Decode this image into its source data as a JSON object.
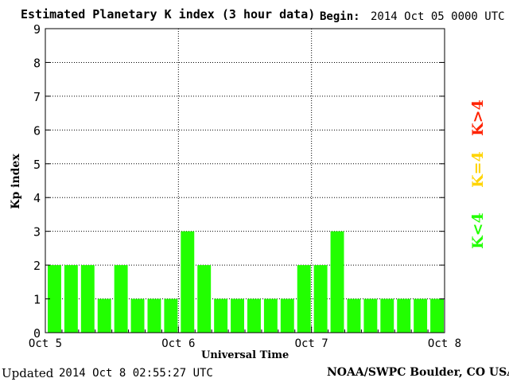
{
  "page": {
    "title": "Estimated Planetary K index (3 hour data)",
    "begin_label": "Begin:",
    "begin_value": "2014 Oct 05 0000 UTC",
    "updated_label": "Updated",
    "updated_value": "2014 Oct  8 02:55:27 UTC",
    "footer_right": "NOAA/SWPC Boulder, CO USA"
  },
  "legend": {
    "high": {
      "label": "K>4",
      "color": "#ff2200"
    },
    "equal": {
      "label": "K=4",
      "color": "#ffd400"
    },
    "low": {
      "label": "K<4",
      "color": "#22ff00"
    }
  },
  "chart_data": {
    "type": "bar",
    "title": "Estimated Planetary K index (3 hour data)",
    "xlabel": "Universal Time",
    "ylabel": "Kp index",
    "ylim": [
      0,
      9
    ],
    "yticks": [
      0,
      1,
      2,
      3,
      4,
      5,
      6,
      7,
      8,
      9
    ],
    "x_tick_labels": [
      "Oct 5",
      "Oct 6",
      "Oct 7",
      "Oct 8"
    ],
    "interval_hours": 3,
    "grid": true,
    "bar_color": "#22ff00",
    "values": [
      2,
      2,
      2,
      1,
      2,
      1,
      1,
      1,
      3,
      2,
      1,
      1,
      1,
      1,
      1,
      2,
      2,
      3,
      1,
      1,
      1,
      1,
      1,
      1
    ]
  }
}
